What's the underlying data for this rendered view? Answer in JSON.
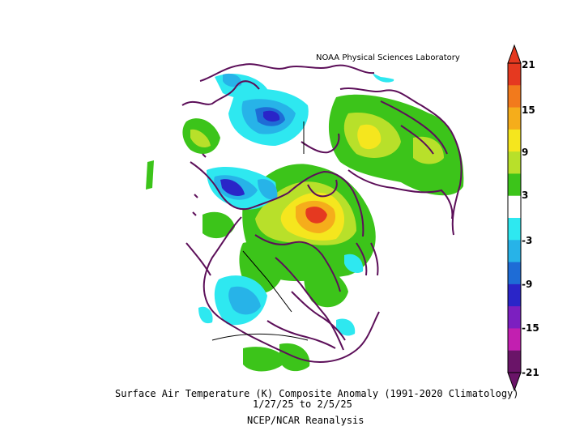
{
  "credit": "NOAA Physical Sciences Laboratory",
  "title_line1": "Surface Air Temperature (K) Composite Anomaly (1991-2020 Climatology)",
  "title_line2": "1/27/25  to 2/5/25",
  "title_line3": "NCEP/NCAR Reanalysis",
  "colorbar": {
    "tick_labels": [
      "21",
      "15",
      "9",
      "3",
      "-3",
      "-9",
      "-15",
      "-21"
    ],
    "colors": [
      "#e53920",
      "#f27a1c",
      "#f5ad1b",
      "#f5e61e",
      "#b8e02a",
      "#3cc41a",
      "#ffffff",
      "#2ee8f0",
      "#27b3e8",
      "#1e6cd6",
      "#2a25c8",
      "#7c1fc0",
      "#c21fb0",
      "#6a1468"
    ]
  },
  "colors": {
    "coastline": "#5c0f59",
    "outline": "#000000"
  }
}
